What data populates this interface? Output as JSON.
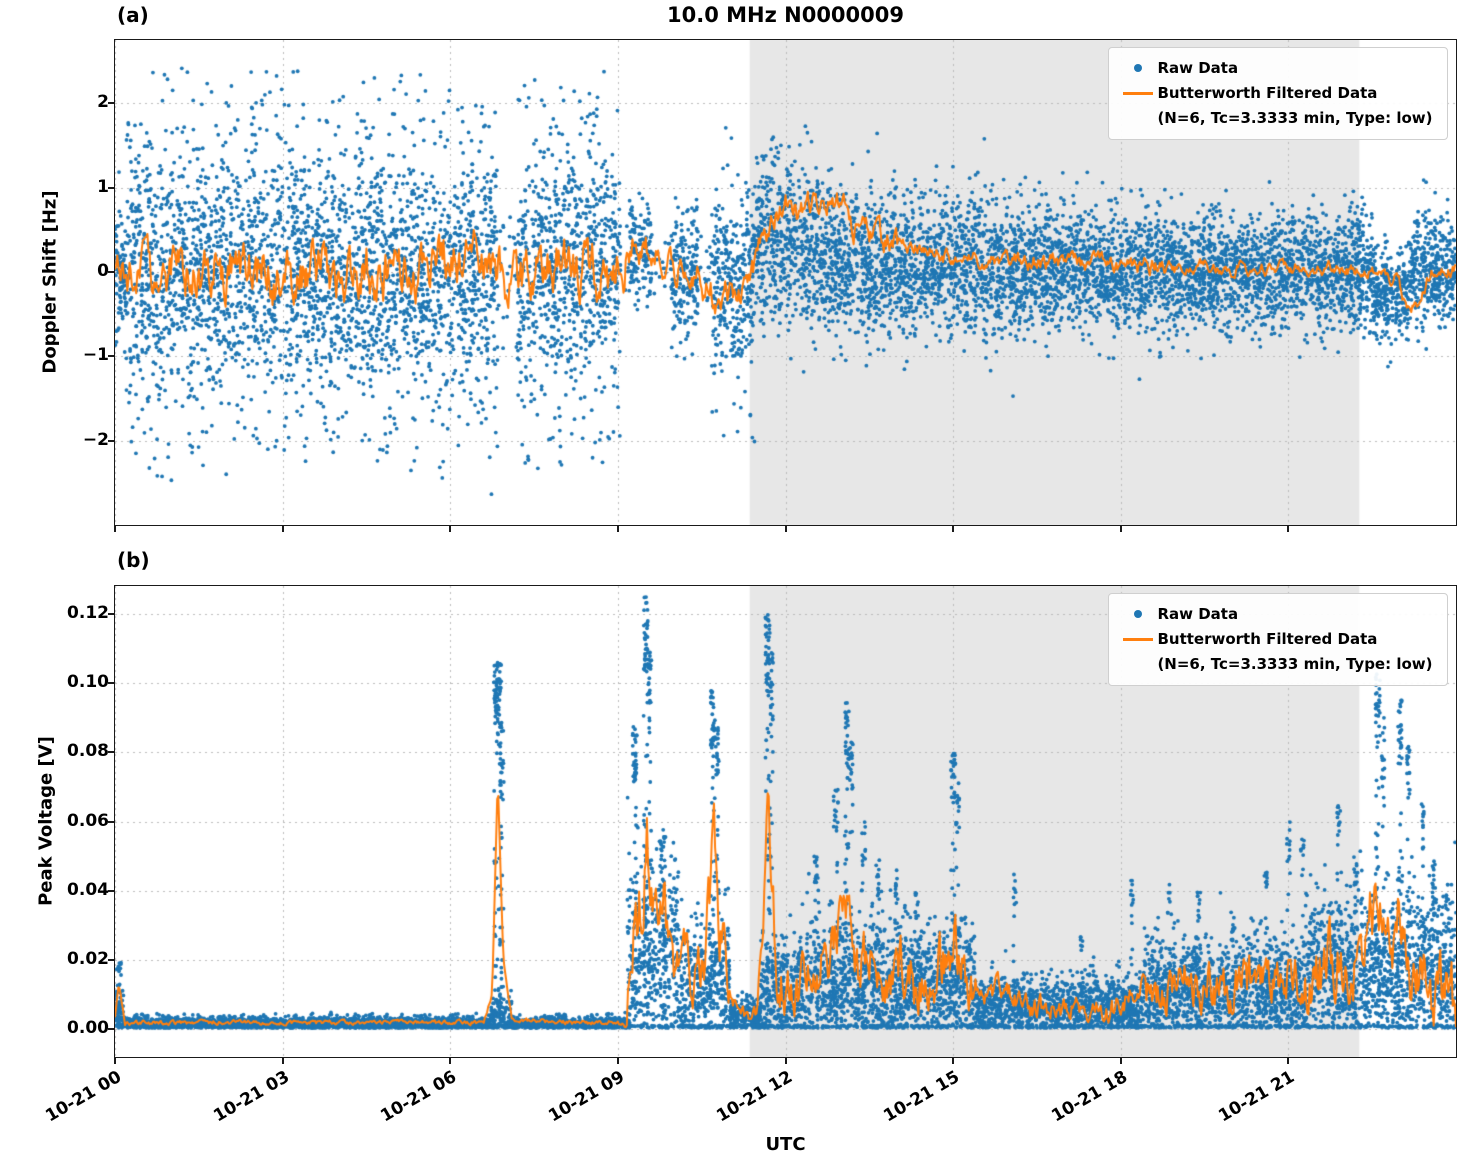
{
  "chart_data": [
    {
      "id": "doppler",
      "type": "scatter",
      "panel_label": "(a)",
      "title": "10.0 MHz N0000009",
      "ylabel": "Doppler Shift [Hz]",
      "xlabel": "",
      "xlim": [
        0,
        24
      ],
      "ylim": [
        -3.0,
        2.75
      ],
      "grid": true,
      "legend_position": "upper right",
      "legend": {
        "raw_label": "Raw Data",
        "filtered_label": "Butterworth Filtered Data",
        "filtered_sublabel": "(N=6, Tc=3.3333 min, Type: low)"
      },
      "colors": {
        "raw": "#1f77b4",
        "filtered": "#ff7f0e"
      },
      "shade_color": "#e7e7e7",
      "shaded_region": [
        11.36,
        22.27
      ],
      "xticks": [
        {
          "v": 0,
          "label": "10-21 00"
        },
        {
          "v": 3,
          "label": "10-21 03"
        },
        {
          "v": 6,
          "label": "10-21 06"
        },
        {
          "v": 9,
          "label": "10-21 09"
        },
        {
          "v": 12,
          "label": "10-21 12"
        },
        {
          "v": 15,
          "label": "10-21 15"
        },
        {
          "v": 18,
          "label": "10-21 18"
        },
        {
          "v": 21,
          "label": "10-21 21"
        }
      ],
      "yticks": [
        {
          "v": -2,
          "label": "−2"
        },
        {
          "v": -1,
          "label": "−1"
        },
        {
          "v": 0,
          "label": "0"
        },
        {
          "v": 1,
          "label": "1"
        },
        {
          "v": 2,
          "label": "2"
        }
      ],
      "scatter_segments_format": "t0_hours, t1_hours, points_per_hour, center_Hz, sigma_Hz",
      "scatter_segments": [
        [
          0.0,
          0.2,
          520,
          0.0,
          0.33
        ],
        [
          0.2,
          6.85,
          440,
          0.0,
          0.74
        ],
        [
          6.85,
          7.2,
          60,
          0.1,
          0.45
        ],
        [
          7.2,
          9.05,
          440,
          0.0,
          0.72
        ],
        [
          9.05,
          9.2,
          25,
          0.15,
          0.3
        ],
        [
          9.2,
          9.6,
          330,
          0.25,
          0.27
        ],
        [
          9.6,
          9.95,
          55,
          0.18,
          0.18
        ],
        [
          9.95,
          10.45,
          380,
          0.02,
          0.42
        ],
        [
          10.45,
          10.68,
          60,
          -0.05,
          0.3
        ],
        [
          10.68,
          11.45,
          420,
          -0.15,
          0.58
        ],
        [
          11.45,
          12.6,
          440,
          0.3,
          0.5
        ],
        [
          12.6,
          14.0,
          440,
          0.12,
          0.45
        ],
        [
          14.0,
          16.5,
          440,
          0.05,
          0.4
        ],
        [
          16.5,
          19.0,
          440,
          0.02,
          0.36
        ],
        [
          19.0,
          22.5,
          440,
          0.0,
          0.33
        ],
        [
          22.5,
          23.15,
          440,
          -0.25,
          0.27
        ],
        [
          23.15,
          24.0,
          440,
          0.02,
          0.3
        ]
      ],
      "line_phi": 0.72,
      "line_min": null,
      "line_wiggle_format": "t0, t1, wiggle_amplitude_Hz",
      "line_wiggle": [
        [
          0,
          9.15,
          0.3
        ],
        [
          9.15,
          11.45,
          0.18
        ],
        [
          11.45,
          14,
          0.15
        ],
        [
          14,
          19,
          0.09
        ],
        [
          19,
          22.5,
          0.07
        ],
        [
          22.5,
          24,
          0.08
        ]
      ],
      "line_base_format": "t_hours, filtered_doppler_Hz",
      "line_base": [
        [
          0,
          0
        ],
        [
          1,
          -0.05
        ],
        [
          2,
          0.05
        ],
        [
          3,
          -0.05
        ],
        [
          4,
          0
        ],
        [
          5,
          0.05
        ],
        [
          6,
          0.1
        ],
        [
          6.45,
          0.35
        ],
        [
          6.8,
          0.1
        ],
        [
          7.1,
          -0.05
        ],
        [
          7.4,
          -0.3
        ],
        [
          7.8,
          0.05
        ],
        [
          8.3,
          0.1
        ],
        [
          8.8,
          -0.05
        ],
        [
          9.05,
          0.1
        ],
        [
          9.25,
          0.35
        ],
        [
          9.5,
          0.25
        ],
        [
          9.8,
          0.1
        ],
        [
          10.1,
          0.05
        ],
        [
          10.4,
          -0.05
        ],
        [
          10.75,
          -0.3
        ],
        [
          11.0,
          -0.25
        ],
        [
          11.25,
          -0.3
        ],
        [
          11.5,
          0.2
        ],
        [
          11.75,
          0.6
        ],
        [
          12.0,
          0.75
        ],
        [
          12.2,
          0.65
        ],
        [
          12.45,
          0.8
        ],
        [
          12.7,
          0.7
        ],
        [
          12.95,
          0.9
        ],
        [
          13.2,
          0.6
        ],
        [
          13.5,
          0.4
        ],
        [
          13.8,
          0.35
        ],
        [
          14.1,
          0.3
        ],
        [
          14.5,
          0.25
        ],
        [
          15,
          0.2
        ],
        [
          15.5,
          0.18
        ],
        [
          16,
          0.15
        ],
        [
          16.5,
          0.12
        ],
        [
          17,
          0.1
        ],
        [
          17.5,
          0.1
        ],
        [
          18,
          0.08
        ],
        [
          18.5,
          0.06
        ],
        [
          19,
          0.05
        ],
        [
          19.5,
          0.06
        ],
        [
          20,
          0.05
        ],
        [
          20.5,
          0.04
        ],
        [
          21,
          0.04
        ],
        [
          21.5,
          0.05
        ],
        [
          22,
          0.03
        ],
        [
          22.5,
          0.0
        ],
        [
          22.9,
          -0.1
        ],
        [
          23.15,
          -0.45
        ],
        [
          23.3,
          -0.35
        ],
        [
          23.5,
          -0.05
        ],
        [
          23.75,
          0.1
        ],
        [
          24,
          0.05
        ]
      ]
    },
    {
      "id": "voltage",
      "type": "scatter",
      "panel_label": "(b)",
      "title": "",
      "ylabel": "Peak Voltage [V]",
      "xlabel": "UTC",
      "xlim": [
        0,
        24
      ],
      "ylim": [
        -0.008,
        0.128
      ],
      "grid": true,
      "legend_position": "upper right",
      "legend": {
        "raw_label": "Raw Data",
        "filtered_label": "Butterworth Filtered Data",
        "filtered_sublabel": "(N=6, Tc=3.3333 min, Type: low)"
      },
      "colors": {
        "raw": "#1f77b4",
        "filtered": "#ff7f0e"
      },
      "shade_color": "#e7e7e7",
      "shaded_region": [
        11.36,
        22.27
      ],
      "xticks": [
        {
          "v": 0,
          "label": "10-21 00"
        },
        {
          "v": 3,
          "label": "10-21 03"
        },
        {
          "v": 6,
          "label": "10-21 06"
        },
        {
          "v": 9,
          "label": "10-21 09"
        },
        {
          "v": 12,
          "label": "10-21 12"
        },
        {
          "v": 15,
          "label": "10-21 15"
        },
        {
          "v": 18,
          "label": "10-21 18"
        },
        {
          "v": 21,
          "label": "10-21 21"
        }
      ],
      "yticks": [
        {
          "v": 0.0,
          "label": "0.00"
        },
        {
          "v": 0.02,
          "label": "0.02"
        },
        {
          "v": 0.04,
          "label": "0.04"
        },
        {
          "v": 0.06,
          "label": "0.06"
        },
        {
          "v": 0.08,
          "label": "0.08"
        },
        {
          "v": 0.1,
          "label": "0.10"
        },
        {
          "v": 0.12,
          "label": "0.12"
        }
      ],
      "baseline_segments_format": "t0_hours, t1_hours, points_per_hour, base_V, noise_sigma_V",
      "baseline_segments": [
        [
          0.0,
          0.15,
          520,
          0.004,
          0.004
        ],
        [
          0.15,
          6.72,
          420,
          0.0015,
          0.0011
        ],
        [
          6.72,
          7.1,
          360,
          0.003,
          0.003
        ],
        [
          7.1,
          9.17,
          420,
          0.0015,
          0.0011
        ],
        [
          9.17,
          10.1,
          470,
          0.02,
          0.015
        ],
        [
          10.1,
          10.62,
          470,
          0.012,
          0.009
        ],
        [
          10.62,
          11.0,
          470,
          0.014,
          0.011
        ],
        [
          11.0,
          11.55,
          430,
          0.004,
          0.0028
        ],
        [
          11.55,
          12.15,
          470,
          0.01,
          0.009
        ],
        [
          12.15,
          15.4,
          470,
          0.012,
          0.0095
        ],
        [
          15.4,
          18.4,
          440,
          0.006,
          0.0045
        ],
        [
          18.4,
          21.3,
          470,
          0.011,
          0.008
        ],
        [
          21.3,
          24.0,
          480,
          0.016,
          0.012
        ]
      ],
      "spikes_format": "t_hours, peak_V, half_width_hours, n_points",
      "spikes": [
        [
          0.07,
          0.02,
          0.04,
          25
        ],
        [
          6.85,
          0.106,
          0.07,
          110
        ],
        [
          6.92,
          0.088,
          0.04,
          45
        ],
        [
          9.3,
          0.088,
          0.04,
          55
        ],
        [
          9.5,
          0.125,
          0.04,
          75
        ],
        [
          9.57,
          0.112,
          0.03,
          40
        ],
        [
          9.8,
          0.058,
          0.05,
          35
        ],
        [
          10.7,
          0.098,
          0.04,
          60
        ],
        [
          10.78,
          0.088,
          0.03,
          30
        ],
        [
          11.68,
          0.121,
          0.04,
          70
        ],
        [
          11.75,
          0.11,
          0.03,
          40
        ],
        [
          12.55,
          0.05,
          0.04,
          25
        ],
        [
          12.9,
          0.07,
          0.04,
          30
        ],
        [
          13.1,
          0.095,
          0.04,
          50
        ],
        [
          13.18,
          0.085,
          0.03,
          30
        ],
        [
          13.4,
          0.06,
          0.04,
          25
        ],
        [
          13.65,
          0.05,
          0.03,
          20
        ],
        [
          14.0,
          0.046,
          0.04,
          22
        ],
        [
          14.35,
          0.04,
          0.03,
          18
        ],
        [
          15.0,
          0.08,
          0.04,
          40
        ],
        [
          15.08,
          0.072,
          0.03,
          25
        ],
        [
          16.1,
          0.045,
          0.03,
          18
        ],
        [
          17.3,
          0.028,
          0.03,
          12
        ],
        [
          18.2,
          0.045,
          0.03,
          18
        ],
        [
          18.85,
          0.042,
          0.03,
          18
        ],
        [
          19.4,
          0.04,
          0.03,
          16
        ],
        [
          20.0,
          0.035,
          0.03,
          14
        ],
        [
          20.6,
          0.05,
          0.03,
          18
        ],
        [
          21.0,
          0.06,
          0.03,
          22
        ],
        [
          21.25,
          0.055,
          0.03,
          18
        ],
        [
          21.9,
          0.065,
          0.03,
          22
        ],
        [
          22.2,
          0.05,
          0.03,
          18
        ],
        [
          22.6,
          0.103,
          0.04,
          55
        ],
        [
          22.7,
          0.09,
          0.03,
          30
        ],
        [
          23.0,
          0.095,
          0.04,
          45
        ],
        [
          23.15,
          0.082,
          0.03,
          28
        ],
        [
          23.4,
          0.065,
          0.03,
          22
        ],
        [
          23.6,
          0.05,
          0.03,
          18
        ],
        [
          23.85,
          0.04,
          0.03,
          14
        ]
      ],
      "line_phi": 0.55,
      "line_min": 0.0006,
      "line_wiggle_format": "t0, t1, wiggle_amplitude_V",
      "line_wiggle": [
        [
          0,
          9.15,
          0.0004
        ],
        [
          9.15,
          11.0,
          0.006
        ],
        [
          11.0,
          11.55,
          0.0015
        ],
        [
          11.55,
          15.4,
          0.005
        ],
        [
          15.4,
          18.4,
          0.002
        ],
        [
          18.4,
          21.3,
          0.004
        ],
        [
          21.3,
          24,
          0.006
        ]
      ],
      "line_base_format": "t_hours, filtered_voltage_V",
      "line_base": [
        [
          0,
          0.003
        ],
        [
          0.07,
          0.013
        ],
        [
          0.18,
          0.002
        ],
        [
          1,
          0.002
        ],
        [
          2,
          0.002
        ],
        [
          3,
          0.002
        ],
        [
          4,
          0.002
        ],
        [
          5,
          0.002
        ],
        [
          6,
          0.002
        ],
        [
          6.6,
          0.002
        ],
        [
          6.75,
          0.01
        ],
        [
          6.85,
          0.073
        ],
        [
          6.95,
          0.02
        ],
        [
          7.1,
          0.003
        ],
        [
          8,
          0.002
        ],
        [
          9.0,
          0.002
        ],
        [
          9.15,
          0.0005
        ],
        [
          9.3,
          0.028
        ],
        [
          9.45,
          0.04
        ],
        [
          9.52,
          0.059
        ],
        [
          9.65,
          0.03
        ],
        [
          9.8,
          0.042
        ],
        [
          9.95,
          0.022
        ],
        [
          10.15,
          0.018
        ],
        [
          10.4,
          0.013
        ],
        [
          10.55,
          0.02
        ],
        [
          10.72,
          0.057
        ],
        [
          10.85,
          0.025
        ],
        [
          11.05,
          0.007
        ],
        [
          11.3,
          0.004
        ],
        [
          11.5,
          0.006
        ],
        [
          11.68,
          0.065
        ],
        [
          11.85,
          0.015
        ],
        [
          12.1,
          0.012
        ],
        [
          12.4,
          0.018
        ],
        [
          12.7,
          0.02
        ],
        [
          12.95,
          0.028
        ],
        [
          13.12,
          0.035
        ],
        [
          13.3,
          0.018
        ],
        [
          13.55,
          0.022
        ],
        [
          13.8,
          0.014
        ],
        [
          14.05,
          0.02
        ],
        [
          14.3,
          0.013
        ],
        [
          14.6,
          0.016
        ],
        [
          14.85,
          0.02
        ],
        [
          15.02,
          0.027
        ],
        [
          15.2,
          0.014
        ],
        [
          15.5,
          0.01
        ],
        [
          15.8,
          0.012
        ],
        [
          16.1,
          0.009
        ],
        [
          16.4,
          0.006
        ],
        [
          16.7,
          0.007
        ],
        [
          17,
          0.005
        ],
        [
          17.3,
          0.007
        ],
        [
          17.6,
          0.005
        ],
        [
          17.9,
          0.006
        ],
        [
          18.2,
          0.01
        ],
        [
          18.5,
          0.012
        ],
        [
          18.8,
          0.011
        ],
        [
          19.1,
          0.014
        ],
        [
          19.4,
          0.012
        ],
        [
          19.7,
          0.013
        ],
        [
          20,
          0.011
        ],
        [
          20.3,
          0.014
        ],
        [
          20.6,
          0.012
        ],
        [
          20.9,
          0.016
        ],
        [
          21.2,
          0.014
        ],
        [
          21.5,
          0.018
        ],
        [
          21.8,
          0.02
        ],
        [
          22.1,
          0.016
        ],
        [
          22.35,
          0.02
        ],
        [
          22.6,
          0.044
        ],
        [
          22.8,
          0.022
        ],
        [
          23.0,
          0.033
        ],
        [
          23.2,
          0.018
        ],
        [
          23.5,
          0.014
        ],
        [
          23.8,
          0.009
        ],
        [
          24,
          0.008
        ]
      ]
    }
  ]
}
